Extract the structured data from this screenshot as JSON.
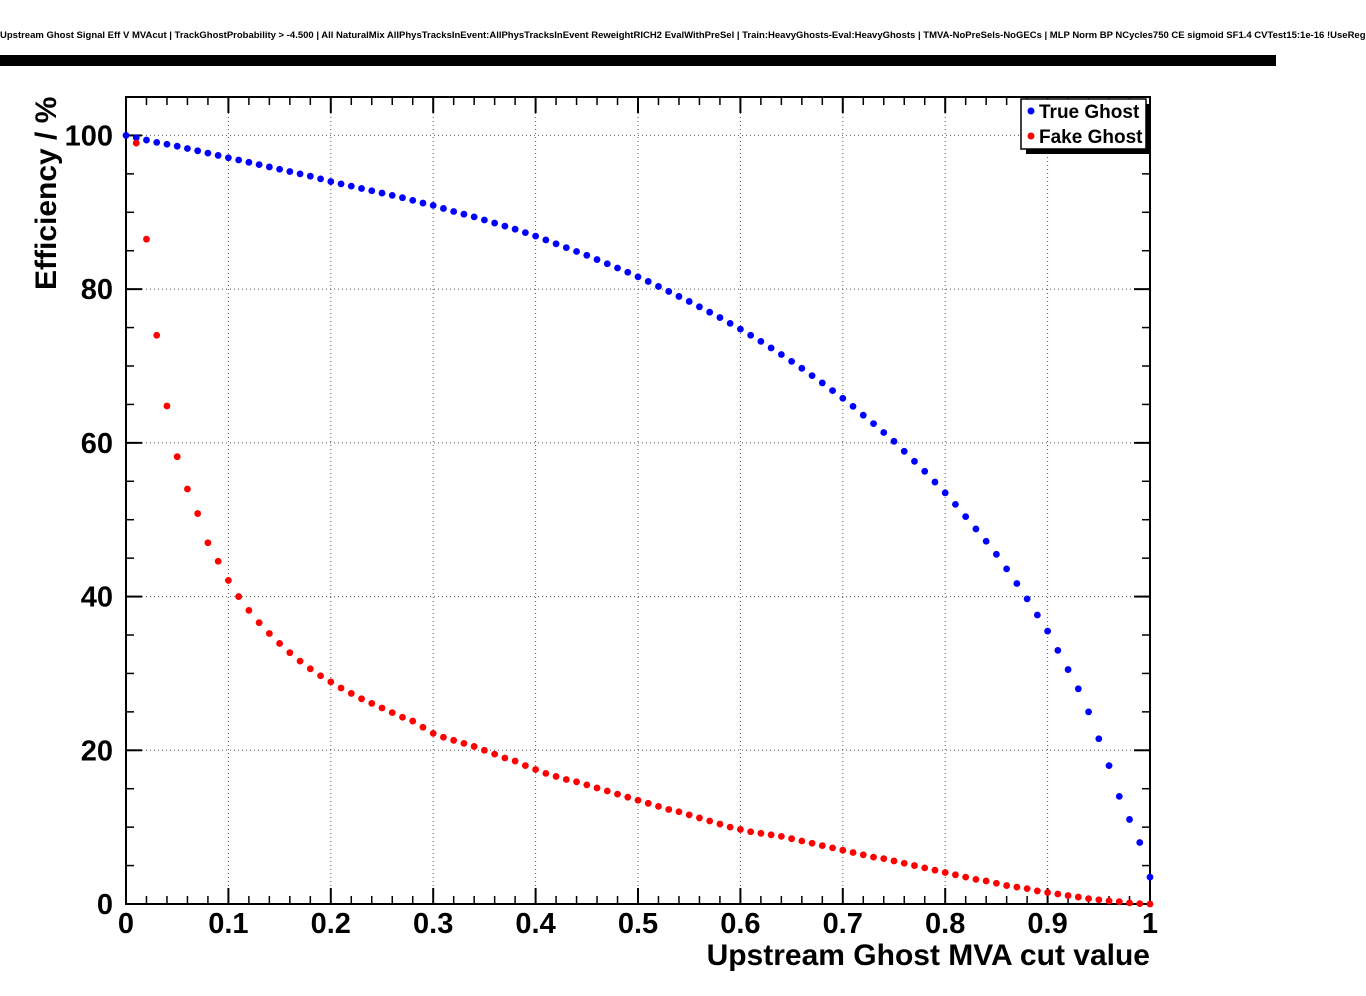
{
  "header": {
    "title": "Upstream Ghost Signal Eff V MVAcut | TrackGhostProbability > -4.500 | All NaturalMix AllPhysTracksInEvent:AllPhysTracksInEvent ReweightRICH2 EvalWithPreSel | Train:HeavyGhosts-Eval:HeavyGhosts | TMVA-NoPreSels-NoGECs | MLP Norm BP NCycles750 CE sigmoid SF1.4 CVTest15:1e-16 !UseReg"
  },
  "chart_data": {
    "type": "scatter",
    "title": "Upstream Ghost Signal Eff V MVAcut",
    "xlabel": "Upstream Ghost MVA cut value",
    "ylabel": "Efficiency / %",
    "xlim": [
      0,
      1
    ],
    "ylim": [
      0,
      105
    ],
    "xticks": [
      0,
      0.1,
      0.2,
      0.3,
      0.4,
      0.5,
      0.6,
      0.7,
      0.8,
      0.9,
      1
    ],
    "xtick_labels": [
      "0",
      "0.1",
      "0.2",
      "0.3",
      "0.4",
      "0.5",
      "0.6",
      "0.7",
      "0.8",
      "0.9",
      "1"
    ],
    "yticks": [
      0,
      20,
      40,
      60,
      80,
      100
    ],
    "ytick_labels": [
      "0",
      "20",
      "40",
      "60",
      "80",
      "100"
    ],
    "grid": true,
    "legend_position": "top-right",
    "series": [
      {
        "name": "True Ghost",
        "color": "#0000ff",
        "x": [
          0,
          0.01,
          0.02,
          0.03,
          0.04,
          0.05,
          0.06,
          0.07,
          0.08,
          0.09,
          0.1,
          0.11,
          0.12,
          0.13,
          0.14,
          0.15,
          0.16,
          0.17,
          0.18,
          0.19,
          0.2,
          0.21,
          0.22,
          0.23,
          0.24,
          0.25,
          0.26,
          0.27,
          0.28,
          0.29,
          0.3,
          0.31,
          0.32,
          0.33,
          0.34,
          0.35,
          0.36,
          0.37,
          0.38,
          0.39,
          0.4,
          0.41,
          0.42,
          0.43,
          0.44,
          0.45,
          0.46,
          0.47,
          0.48,
          0.49,
          0.5,
          0.51,
          0.52,
          0.53,
          0.54,
          0.55,
          0.56,
          0.57,
          0.58,
          0.59,
          0.6,
          0.61,
          0.62,
          0.63,
          0.64,
          0.65,
          0.66,
          0.67,
          0.68,
          0.69,
          0.7,
          0.71,
          0.72,
          0.73,
          0.74,
          0.75,
          0.76,
          0.77,
          0.78,
          0.79,
          0.8,
          0.81,
          0.82,
          0.83,
          0.84,
          0.85,
          0.86,
          0.87,
          0.88,
          0.89,
          0.9,
          0.91,
          0.92,
          0.93,
          0.94,
          0.95,
          0.96,
          0.97,
          0.98,
          0.99,
          1
        ],
        "y": [
          100.0,
          99.7,
          99.4,
          99.1,
          98.85,
          98.6,
          98.3,
          98.0,
          97.7,
          97.4,
          97.1,
          96.8,
          96.5,
          96.2,
          95.9,
          95.6,
          95.3,
          95.0,
          94.7,
          94.35,
          94.0,
          93.7,
          93.4,
          93.1,
          92.8,
          92.5,
          92.2,
          91.9,
          91.55,
          91.2,
          90.9,
          90.5,
          90.1,
          89.75,
          89.4,
          89.0,
          88.6,
          88.2,
          87.8,
          87.35,
          86.9,
          86.4,
          85.9,
          85.4,
          84.9,
          84.4,
          83.85,
          83.3,
          82.75,
          82.2,
          81.6,
          81.0,
          80.35,
          79.7,
          79.05,
          78.4,
          77.7,
          77.0,
          76.3,
          75.55,
          74.8,
          74.0,
          73.2,
          72.35,
          71.5,
          70.6,
          69.7,
          68.75,
          67.8,
          66.8,
          65.8,
          64.75,
          63.6,
          62.5,
          61.35,
          60.2,
          58.9,
          57.6,
          56.3,
          54.9,
          53.5,
          52.0,
          50.4,
          48.8,
          47.2,
          45.5,
          43.6,
          41.7,
          39.7,
          37.6,
          35.5,
          33.0,
          30.5,
          28.0,
          25.0,
          21.5,
          18.0,
          14.0,
          11.0,
          8.0,
          3.5
        ]
      },
      {
        "name": "Fake Ghost",
        "color": "#ff0000",
        "x": [
          0.01,
          0.02,
          0.03,
          0.04,
          0.05,
          0.06,
          0.07,
          0.08,
          0.09,
          0.1,
          0.11,
          0.12,
          0.13,
          0.14,
          0.15,
          0.16,
          0.17,
          0.18,
          0.19,
          0.2,
          0.21,
          0.22,
          0.23,
          0.24,
          0.25,
          0.26,
          0.27,
          0.28,
          0.29,
          0.3,
          0.31,
          0.32,
          0.33,
          0.34,
          0.35,
          0.36,
          0.37,
          0.38,
          0.39,
          0.4,
          0.41,
          0.42,
          0.43,
          0.44,
          0.45,
          0.46,
          0.47,
          0.48,
          0.49,
          0.5,
          0.51,
          0.52,
          0.53,
          0.54,
          0.55,
          0.56,
          0.57,
          0.58,
          0.59,
          0.6,
          0.61,
          0.62,
          0.63,
          0.64,
          0.65,
          0.66,
          0.67,
          0.68,
          0.69,
          0.7,
          0.71,
          0.72,
          0.73,
          0.74,
          0.75,
          0.76,
          0.77,
          0.78,
          0.79,
          0.8,
          0.81,
          0.82,
          0.83,
          0.84,
          0.85,
          0.86,
          0.87,
          0.88,
          0.89,
          0.9,
          0.91,
          0.92,
          0.93,
          0.94,
          0.95,
          0.96,
          0.97,
          0.98,
          0.99,
          1
        ],
        "y": [
          99.0,
          86.5,
          74.0,
          64.8,
          58.2,
          54.0,
          50.8,
          47.0,
          44.6,
          42.1,
          40.0,
          38.2,
          36.6,
          35.2,
          33.9,
          32.7,
          31.6,
          30.6,
          29.7,
          28.9,
          28.1,
          27.4,
          26.7,
          26.1,
          25.5,
          24.9,
          24.3,
          23.8,
          23.0,
          22.2,
          21.7,
          21.3,
          20.9,
          20.5,
          20.0,
          19.5,
          19.0,
          18.6,
          18.0,
          17.5,
          17.0,
          16.6,
          16.2,
          15.9,
          15.5,
          15.1,
          14.7,
          14.3,
          13.9,
          13.5,
          13.1,
          12.7,
          12.3,
          12.0,
          11.6,
          11.2,
          10.8,
          10.4,
          10.0,
          9.7,
          9.4,
          9.2,
          9.0,
          8.8,
          8.5,
          8.2,
          7.9,
          7.6,
          7.3,
          7.0,
          6.7,
          6.4,
          6.1,
          5.9,
          5.6,
          5.3,
          5.0,
          4.7,
          4.4,
          4.1,
          3.8,
          3.5,
          3.2,
          3.0,
          2.7,
          2.4,
          2.2,
          2.0,
          1.7,
          1.5,
          1.3,
          1.1,
          0.9,
          0.7,
          0.55,
          0.4,
          0.3,
          0.15,
          0.05,
          0.0
        ]
      }
    ]
  }
}
